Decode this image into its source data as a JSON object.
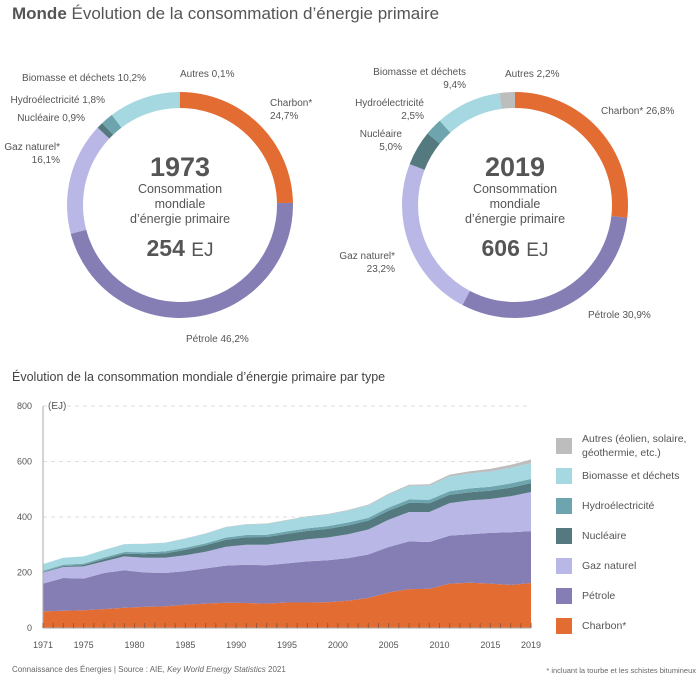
{
  "title": {
    "bold": "Monde",
    "rest": "Évolution de la consommation d’énergie primaire"
  },
  "colors": {
    "Charbon": "#e36c33",
    "Pétrole": "#857eb5",
    "Gaz naturel": "#b9b7e6",
    "Nucléaire": "#547a80",
    "Hydroélectricité": "#6ea4ae",
    "Biomasse": "#a6d8e1",
    "Autres": "#bdbdbd"
  },
  "donuts": [
    {
      "year": "1973",
      "sub1": "Consommation",
      "sub2": "mondiale",
      "sub3": "d’énergie primaire",
      "total": "254",
      "unit": "EJ",
      "labels": {
        "charbon1": "Charbon*",
        "charbon2": "24,7%",
        "petrole": "Pétrole 46,2%",
        "gaz1": "Gaz naturel*",
        "gaz2": "16,1%",
        "nucleaire": "Nucléaire 0,9%",
        "hydro": "Hydroélectricité 1,8%",
        "biomasse": "Biomasse et déchets 10,2%",
        "autres": "Autres 0,1%"
      },
      "values": [
        24.7,
        46.2,
        16.1,
        0.9,
        1.8,
        10.2,
        0.1
      ]
    },
    {
      "year": "2019",
      "sub1": "Consommation",
      "sub2": "mondiale",
      "sub3": "d’énergie primaire",
      "total": "606",
      "unit": "EJ",
      "labels": {
        "charbon": "Charbon* 26,8%",
        "petrole": "Pétrole 30,9%",
        "gaz1": "Gaz naturel*",
        "gaz2": "23,2%",
        "nucleaire1": "Nucléaire",
        "nucleaire2": "5,0%",
        "hydro1": "Hydroélectricité",
        "hydro2": "2,5%",
        "biomasse1": "Biomasse et déchets",
        "biomasse2": "9,4%",
        "autres": "Autres 2,2%"
      },
      "values": [
        26.8,
        30.9,
        23.2,
        5.0,
        2.5,
        9.4,
        2.2
      ]
    }
  ],
  "chart_data": {
    "type": "area",
    "title": "Évolution de la consommation mondiale d’énergie primaire par type",
    "ylabel": "(EJ)",
    "ylim": [
      0,
      800
    ],
    "yticks": [
      "0",
      "200",
      "400",
      "600",
      "800"
    ],
    "xticks": [
      "1971",
      "1975",
      "1980",
      "1985",
      "1990",
      "1995",
      "2000",
      "2005",
      "2010",
      "2015",
      "2019"
    ],
    "x": [
      1971,
      1973,
      1975,
      1977,
      1979,
      1981,
      1983,
      1985,
      1987,
      1989,
      1991,
      1993,
      1995,
      1997,
      1999,
      2001,
      2003,
      2005,
      2007,
      2009,
      2011,
      2013,
      2015,
      2017,
      2019
    ],
    "series": [
      {
        "name": "Charbon*",
        "key": "Charbon",
        "values": [
          60,
          62,
          64,
          68,
          73,
          76,
          78,
          84,
          88,
          91,
          90,
          88,
          92,
          92,
          93,
          98,
          108,
          128,
          140,
          141,
          160,
          163,
          160,
          155,
          162
        ]
      },
      {
        "name": "Pétrole",
        "key": "Pétrole",
        "values": [
          100,
          118,
          114,
          130,
          135,
          124,
          120,
          121,
          127,
          134,
          138,
          138,
          141,
          148,
          151,
          154,
          157,
          164,
          172,
          169,
          173,
          175,
          183,
          190,
          187
        ]
      },
      {
        "name": "Gaz naturel",
        "key": "Gaz naturel",
        "values": [
          40,
          40,
          44,
          42,
          50,
          53,
          55,
          57,
          60,
          68,
          72,
          74,
          77,
          80,
          82,
          86,
          90,
          98,
          106,
          108,
          117,
          122,
          122,
          130,
          141
        ]
      },
      {
        "name": "Nucléaire",
        "key": "Nucléaire",
        "values": [
          2,
          3,
          5,
          8,
          10,
          13,
          16,
          20,
          23,
          25,
          27,
          28,
          29,
          30,
          31,
          32,
          32,
          33,
          33,
          32,
          30,
          29,
          30,
          31,
          32
        ]
      },
      {
        "name": "Hydroélectricité",
        "key": "Hydroélectricité",
        "values": [
          4,
          5,
          5,
          6,
          6,
          7,
          7,
          7,
          7,
          8,
          8,
          8,
          9,
          9,
          10,
          10,
          10,
          11,
          12,
          12,
          13,
          14,
          14,
          15,
          15
        ]
      },
      {
        "name": "Biomasse et déchets",
        "key": "Biomasse",
        "values": [
          24,
          25,
          26,
          27,
          28,
          30,
          31,
          33,
          35,
          37,
          38,
          39,
          40,
          42,
          42,
          43,
          45,
          47,
          49,
          51,
          53,
          54,
          55,
          56,
          57
        ]
      },
      {
        "name": "Autres (éolien, solaire, géothermie, etc.)",
        "key": "Autres",
        "values": [
          0.2,
          0.3,
          0.3,
          0.4,
          0.4,
          0.5,
          0.6,
          0.8,
          1,
          1.2,
          1.3,
          1.4,
          1.5,
          1.7,
          2,
          2.3,
          2.7,
          3.3,
          4,
          5,
          6.5,
          8,
          9.5,
          11,
          13
        ]
      }
    ],
    "legend": [
      "Autres (éolien, solaire,",
      "géothermie, etc.)",
      "Biomasse et déchets",
      "Hydroélectricité",
      "Nucléaire",
      "Gaz naturel",
      "Pétrole",
      "Charbon*"
    ],
    "legend_position": "right"
  },
  "footer": {
    "source": "Connaissance des Énergies | Source : AIE, ",
    "italic": "Key World Energy Statistics",
    "year": " 2021",
    "note": "* incluant la tourbe et les schistes bitumineux"
  }
}
